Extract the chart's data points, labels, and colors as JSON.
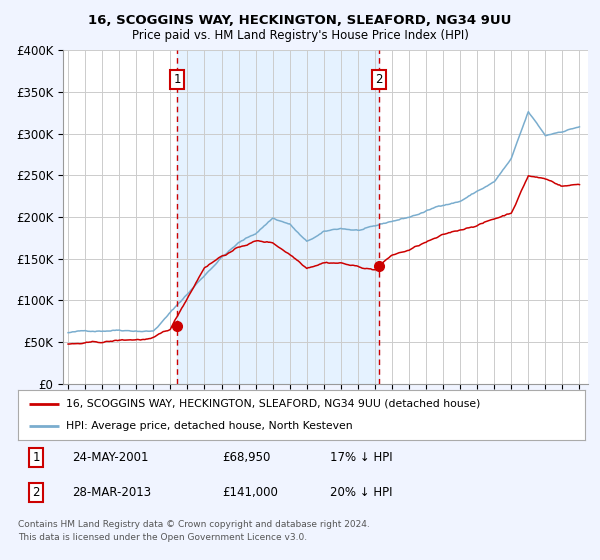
{
  "title_line1": "16, SCOGGINS WAY, HECKINGTON, SLEAFORD, NG34 9UU",
  "title_line2": "Price paid vs. HM Land Registry's House Price Index (HPI)",
  "ylim": [
    0,
    400000
  ],
  "xlim_start": 1994.7,
  "xlim_end": 2025.5,
  "grid_color": "#cccccc",
  "background_color": "#f0f4ff",
  "plot_bg_color": "#ffffff",
  "red_line_color": "#cc0000",
  "blue_line_color": "#7aadce",
  "vline_color": "#cc0000",
  "shade_color": "#ddeeff",
  "marker1_x": 2001.39,
  "marker1_y": 68950,
  "marker2_x": 2013.24,
  "marker2_y": 141000,
  "marker1_label": "1",
  "marker2_label": "2",
  "legend_line1": "16, SCOGGINS WAY, HECKINGTON, SLEAFORD, NG34 9UU (detached house)",
  "legend_line2": "HPI: Average price, detached house, North Kesteven",
  "table_row1": [
    "1",
    "24-MAY-2001",
    "£68,950",
    "17% ↓ HPI"
  ],
  "table_row2": [
    "2",
    "28-MAR-2013",
    "£141,000",
    "20% ↓ HPI"
  ],
  "footer_line1": "Contains HM Land Registry data © Crown copyright and database right 2024.",
  "footer_line2": "This data is licensed under the Open Government Licence v3.0.",
  "ytick_labels": [
    "£0",
    "£50K",
    "£100K",
    "£150K",
    "£200K",
    "£250K",
    "£300K",
    "£350K",
    "£400K"
  ],
  "ytick_values": [
    0,
    50000,
    100000,
    150000,
    200000,
    250000,
    300000,
    350000,
    400000
  ],
  "hpi_anchors_x": [
    1995,
    1997,
    1998,
    2000,
    2001,
    2004,
    2005,
    2006,
    2007,
    2008,
    2009,
    2010,
    2011,
    2012,
    2013,
    2014,
    2015,
    2016,
    2017,
    2018,
    2019,
    2020,
    2021,
    2022,
    2023,
    2024,
    2025
  ],
  "hpi_anchors_y": [
    61000,
    64000,
    66000,
    66000,
    88000,
    155000,
    172000,
    183000,
    202000,
    195000,
    173000,
    184000,
    188000,
    186000,
    189000,
    195000,
    200000,
    207000,
    215000,
    220000,
    232000,
    243000,
    270000,
    325000,
    296000,
    302000,
    308000
  ],
  "red_anchors_x": [
    1995,
    1997,
    1998,
    2000,
    2001,
    2003,
    2004,
    2005,
    2006,
    2007,
    2008,
    2009,
    2010,
    2011,
    2012,
    2013,
    2014,
    2015,
    2016,
    2017,
    2018,
    2019,
    2020,
    2021,
    2022,
    2023,
    2024,
    2025
  ],
  "red_anchors_y": [
    47000,
    48000,
    50000,
    52000,
    62000,
    138000,
    152000,
    162000,
    170000,
    168000,
    155000,
    140000,
    148000,
    148000,
    143000,
    140000,
    157000,
    163000,
    172000,
    179000,
    185000,
    192000,
    199000,
    207000,
    252000,
    248000,
    240000,
    242000
  ]
}
